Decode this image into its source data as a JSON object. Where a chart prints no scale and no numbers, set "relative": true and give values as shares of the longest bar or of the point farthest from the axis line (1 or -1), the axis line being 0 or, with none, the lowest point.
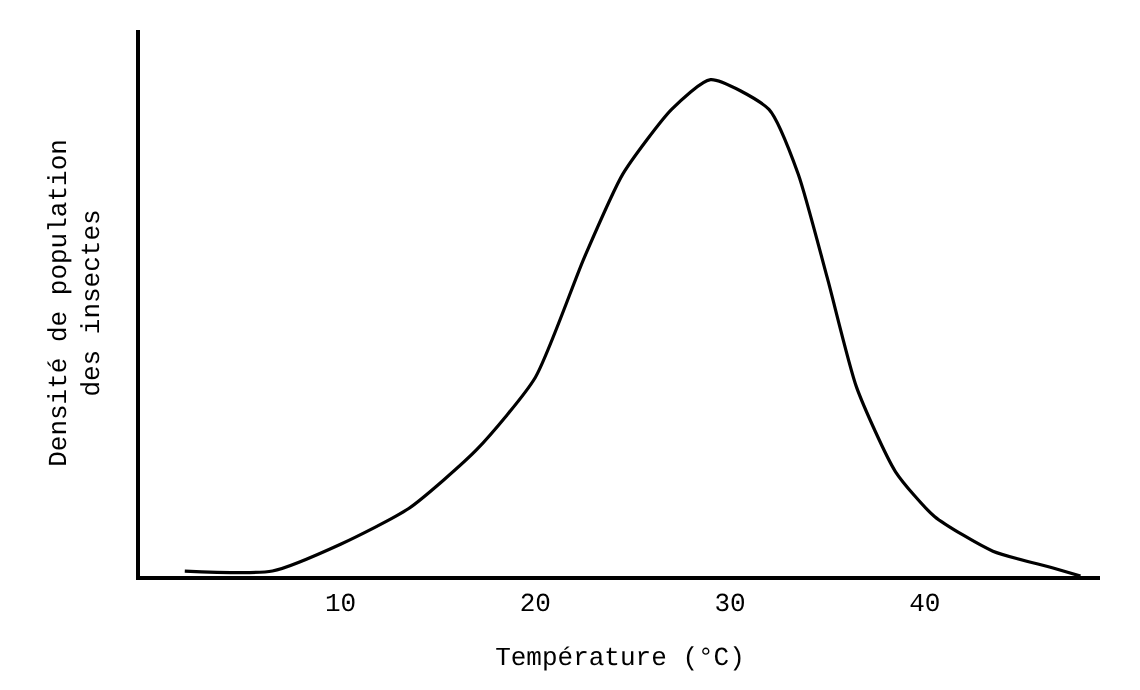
{
  "chart_data": {
    "type": "line",
    "relative": true,
    "xlabel": "Température (°C)",
    "ylabel": "Densité de population\ndes insectes",
    "x": [
      2,
      6.5,
      10,
      13.5,
      17,
      20,
      22.5,
      24.5,
      27,
      29,
      32,
      33.5,
      35,
      36.5,
      38.5,
      40.5,
      43.5,
      46.5,
      48
    ],
    "series": [
      {
        "color": "#000000",
        "values": [
          0.01,
          0.01,
          0.064,
          0.136,
          0.255,
          0.4,
          0.64,
          0.81,
          0.94,
          1.0,
          0.94,
          0.81,
          0.6,
          0.38,
          0.21,
          0.12,
          0.05,
          0.017,
          0
        ]
      }
    ],
    "xlim": [
      -0.3,
      49
    ],
    "xticks": [
      10,
      20,
      30,
      40
    ],
    "marker": "none",
    "line_style": "solid"
  }
}
